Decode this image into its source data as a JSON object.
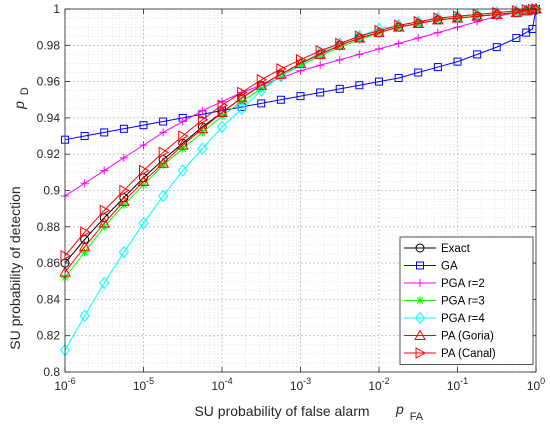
{
  "chart_data": {
    "type": "line",
    "title": "",
    "xlabel": "SU probability of false alarm",
    "xlabel_symbol": "p",
    "xlabel_subscript": "FA",
    "ylabel": "SU probability of detection",
    "ylabel_symbol": "p",
    "ylabel_subscript": "D",
    "xscale": "log",
    "xlim": [
      1e-06,
      1
    ],
    "ylim": [
      0.8,
      1
    ],
    "grid": true,
    "legend_location": "bottom-right",
    "x_ticks": [
      {
        "value": 1e-06,
        "base": "10",
        "exp": "-6"
      },
      {
        "value": 1e-05,
        "base": "10",
        "exp": "-5"
      },
      {
        "value": 0.0001,
        "base": "10",
        "exp": "-4"
      },
      {
        "value": 0.001,
        "base": "10",
        "exp": "-3"
      },
      {
        "value": 0.01,
        "base": "10",
        "exp": "-2"
      },
      {
        "value": 0.1,
        "base": "10",
        "exp": "-1"
      },
      {
        "value": 1,
        "base": "10",
        "exp": "0"
      }
    ],
    "y_ticks": [
      {
        "value": 0.8,
        "label": "0.8"
      },
      {
        "value": 0.82,
        "label": "0.82"
      },
      {
        "value": 0.84,
        "label": "0.84"
      },
      {
        "value": 0.86,
        "label": "0.86"
      },
      {
        "value": 0.88,
        "label": "0.88"
      },
      {
        "value": 0.9,
        "label": "0.9"
      },
      {
        "value": 0.92,
        "label": "0.92"
      },
      {
        "value": 0.94,
        "label": "0.94"
      },
      {
        "value": 0.96,
        "label": "0.96"
      },
      {
        "value": 0.98,
        "label": "0.98"
      },
      {
        "value": 1,
        "label": "1"
      }
    ],
    "series": [
      {
        "name": "Exact",
        "color": "#000000",
        "marker": "circle",
        "x": [
          1e-06,
          1.78e-06,
          3.16e-06,
          5.62e-06,
          1e-05,
          1.78e-05,
          3.16e-05,
          5.62e-05,
          0.0001,
          0.000178,
          0.000316,
          0.000562,
          0.001,
          0.00178,
          0.00316,
          0.00562,
          0.01,
          0.0178,
          0.0316,
          0.0562,
          0.1,
          0.178,
          0.316,
          0.562,
          0.75,
          0.9,
          1
        ],
        "y": [
          0.86,
          0.873,
          0.885,
          0.896,
          0.907,
          0.917,
          0.926,
          0.935,
          0.943,
          0.951,
          0.958,
          0.964,
          0.97,
          0.975,
          0.98,
          0.984,
          0.987,
          0.99,
          0.992,
          0.994,
          0.995,
          0.996,
          0.997,
          0.998,
          0.999,
          0.9995,
          1.0
        ]
      },
      {
        "name": "GA",
        "color": "#0000ff",
        "marker": "square",
        "x": [
          1e-06,
          1.78e-06,
          3.16e-06,
          5.62e-06,
          1e-05,
          1.78e-05,
          3.16e-05,
          5.62e-05,
          0.0001,
          0.000178,
          0.000316,
          0.000562,
          0.001,
          0.00178,
          0.00316,
          0.00562,
          0.01,
          0.0178,
          0.0316,
          0.0562,
          0.1,
          0.178,
          0.316,
          0.562,
          0.75,
          0.9,
          1
        ],
        "y": [
          0.928,
          0.93,
          0.932,
          0.934,
          0.936,
          0.938,
          0.94,
          0.942,
          0.944,
          0.946,
          0.948,
          0.95,
          0.952,
          0.954,
          0.956,
          0.958,
          0.96,
          0.962,
          0.965,
          0.968,
          0.971,
          0.975,
          0.979,
          0.984,
          0.987,
          0.989,
          1.0
        ]
      },
      {
        "name": "PGA r=2",
        "color": "#ff00ff",
        "marker": "plus",
        "x": [
          1e-06,
          1.78e-06,
          3.16e-06,
          5.62e-06,
          1e-05,
          1.78e-05,
          3.16e-05,
          5.62e-05,
          0.0001,
          0.000178,
          0.000316,
          0.000562,
          0.001,
          0.00178,
          0.00316,
          0.00562,
          0.01,
          0.0178,
          0.0316,
          0.0562,
          0.1,
          0.178,
          0.316,
          0.562,
          0.75,
          0.9,
          1
        ],
        "y": [
          0.897,
          0.904,
          0.911,
          0.918,
          0.925,
          0.932,
          0.938,
          0.944,
          0.949,
          0.954,
          0.958,
          0.962,
          0.966,
          0.969,
          0.972,
          0.975,
          0.978,
          0.981,
          0.984,
          0.987,
          0.99,
          0.993,
          0.996,
          0.998,
          0.999,
          0.9995,
          1.0
        ]
      },
      {
        "name": "PGA r=3",
        "color": "#00ff00",
        "marker": "star",
        "x": [
          1e-06,
          1.78e-06,
          3.16e-06,
          5.62e-06,
          1e-05,
          1.78e-05,
          3.16e-05,
          5.62e-05,
          0.0001,
          0.000178,
          0.000316,
          0.000562,
          0.001,
          0.00178,
          0.00316,
          0.00562,
          0.01,
          0.0178,
          0.0316,
          0.0562,
          0.1,
          0.178,
          0.316,
          0.562,
          0.75,
          0.9,
          1
        ],
        "y": [
          0.852,
          0.866,
          0.88,
          0.892,
          0.903,
          0.914,
          0.923,
          0.932,
          0.941,
          0.949,
          0.956,
          0.963,
          0.969,
          0.974,
          0.979,
          0.983,
          0.987,
          0.99,
          0.992,
          0.994,
          0.995,
          0.996,
          0.997,
          0.998,
          0.999,
          0.9995,
          1.0
        ]
      },
      {
        "name": "PGA r=4",
        "color": "#00ffff",
        "marker": "diamond",
        "x": [
          1e-06,
          1.78e-06,
          3.16e-06,
          5.62e-06,
          1e-05,
          1.78e-05,
          3.16e-05,
          5.62e-05,
          0.0001,
          0.000178,
          0.000316,
          0.000562,
          0.001,
          0.00178,
          0.00316,
          0.00562,
          0.01,
          0.0178,
          0.0316,
          0.0562,
          0.1,
          0.178,
          0.316,
          0.562,
          0.75,
          0.9,
          1
        ],
        "y": [
          0.812,
          0.831,
          0.849,
          0.866,
          0.882,
          0.897,
          0.911,
          0.923,
          0.935,
          0.945,
          0.955,
          0.963,
          0.97,
          0.976,
          0.981,
          0.985,
          0.989,
          0.991,
          0.993,
          0.995,
          0.996,
          0.997,
          0.998,
          0.999,
          0.9995,
          0.9998,
          1.0
        ]
      },
      {
        "name": "PA (Goria)",
        "color": "#ff0000",
        "marker": "triangle-up",
        "x": [
          1e-06,
          1.78e-06,
          3.16e-06,
          5.62e-06,
          1e-05,
          1.78e-05,
          3.16e-05,
          5.62e-05,
          0.0001,
          0.000178,
          0.000316,
          0.000562,
          0.001,
          0.00178,
          0.00316,
          0.00562,
          0.01,
          0.0178,
          0.0316,
          0.0562,
          0.1,
          0.178,
          0.316,
          0.562,
          0.75,
          0.9,
          1
        ],
        "y": [
          0.855,
          0.869,
          0.882,
          0.894,
          0.905,
          0.915,
          0.925,
          0.934,
          0.943,
          0.951,
          0.958,
          0.964,
          0.97,
          0.975,
          0.98,
          0.984,
          0.987,
          0.99,
          0.992,
          0.994,
          0.995,
          0.996,
          0.997,
          0.998,
          0.999,
          0.9995,
          1.0
        ]
      },
      {
        "name": "PA (Canal)",
        "color": "#ff0000",
        "marker": "triangle-right",
        "x": [
          1e-06,
          1.78e-06,
          3.16e-06,
          5.62e-06,
          1e-05,
          1.78e-05,
          3.16e-05,
          5.62e-05,
          0.0001,
          0.000178,
          0.000316,
          0.000562,
          0.001,
          0.00178,
          0.00316,
          0.00562,
          0.01,
          0.0178,
          0.0316,
          0.0562,
          0.1,
          0.178,
          0.316,
          0.562,
          0.75,
          0.9,
          1
        ],
        "y": [
          0.864,
          0.877,
          0.889,
          0.9,
          0.911,
          0.921,
          0.93,
          0.939,
          0.947,
          0.954,
          0.961,
          0.967,
          0.972,
          0.977,
          0.981,
          0.985,
          0.988,
          0.991,
          0.993,
          0.995,
          0.996,
          0.997,
          0.998,
          0.999,
          0.9995,
          0.9998,
          1.0
        ]
      }
    ]
  }
}
